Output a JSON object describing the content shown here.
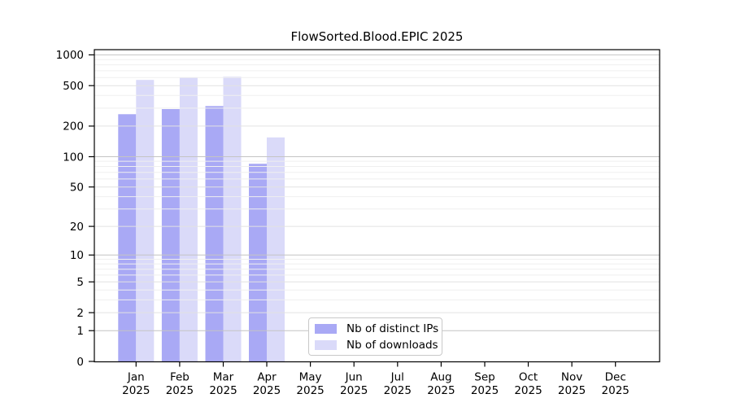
{
  "page": {
    "background": "#ffffff"
  },
  "chart_data": {
    "type": "bar",
    "title": "FlowSorted.Blood.EPIC 2025",
    "categories": [
      "Jan",
      "Feb",
      "Mar",
      "Apr",
      "May",
      "Jun",
      "Jul",
      "Aug",
      "Sep",
      "Oct",
      "Nov",
      "Dec"
    ],
    "year_label": "2025",
    "series": [
      {
        "name": "Nb of distinct IPs",
        "color": "#a9a9f5",
        "values": [
          262,
          294,
          315,
          85,
          null,
          null,
          null,
          null,
          null,
          null,
          null,
          null
        ]
      },
      {
        "name": "Nb of downloads",
        "color": "#dadaf9",
        "values": [
          568,
          597,
          612,
          155,
          null,
          null,
          null,
          null,
          null,
          null,
          null,
          null
        ]
      }
    ],
    "y_axis": {
      "scale": "log10(value+1)",
      "range": [
        0,
        1000
      ],
      "ticks": [
        0,
        1,
        2,
        5,
        10,
        20,
        50,
        100,
        200,
        500,
        1000
      ],
      "minor_gridlines": [
        3,
        4,
        6,
        7,
        8,
        9,
        30,
        40,
        60,
        70,
        80,
        90,
        300,
        400,
        600,
        700,
        800,
        900
      ]
    },
    "legend": {
      "position": "bottom-center-inside"
    },
    "colors": {
      "grid_power10": "#c4c4c4",
      "grid_labeled": "#e2e2e2",
      "grid_minor": "#efefef",
      "axis": "#000000"
    }
  }
}
